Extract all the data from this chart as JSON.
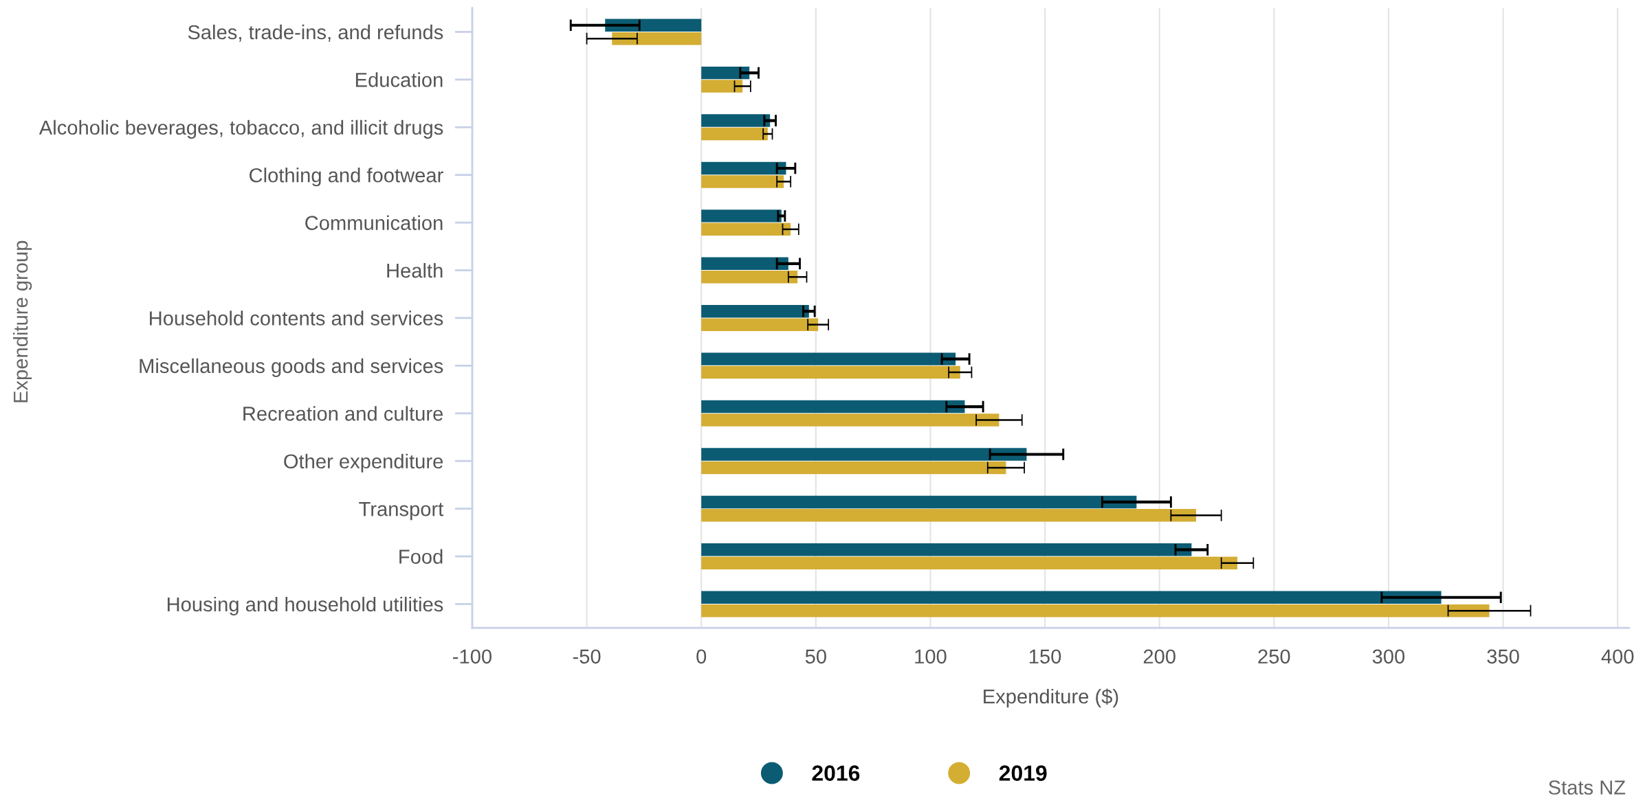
{
  "chart_data": {
    "type": "bar",
    "orientation": "horizontal",
    "xlabel": "Expenditure ($)",
    "ylabel": "Expenditure group",
    "categories": [
      "Sales, trade-ins, and refunds",
      "Education",
      "Alcoholic beverages, tobacco, and illicit drugs",
      "Clothing and footwear",
      "Communication",
      "Health",
      "Household contents and services",
      "Miscellaneous goods and services",
      "Recreation and culture",
      "Other expenditure",
      "Transport",
      "Food",
      "Housing and household utilities"
    ],
    "series": [
      {
        "name": "2016",
        "color": "#0b5c73",
        "values": [
          -42,
          21,
          30,
          37,
          35,
          38,
          47,
          111,
          115,
          142,
          190,
          214,
          323
        ],
        "errors": [
          15,
          4,
          2.5,
          4,
          1.5,
          5,
          2.5,
          6,
          8,
          16,
          15,
          7,
          26
        ]
      },
      {
        "name": "2019",
        "color": "#d4ad33",
        "values": [
          -39,
          18,
          29,
          36,
          39,
          42,
          51,
          113,
          130,
          133,
          216,
          234,
          344
        ],
        "errors": [
          11,
          3.5,
          2,
          3,
          3.5,
          4,
          4.5,
          5,
          10,
          8,
          11,
          7,
          18
        ]
      }
    ],
    "xlim": [
      -100,
      405
    ],
    "xticks": [
      -100,
      -50,
      0,
      50,
      100,
      150,
      200,
      250,
      300,
      350,
      400
    ],
    "grid": "x",
    "legend": "bottom",
    "annotations": [
      "Stats NZ"
    ]
  }
}
